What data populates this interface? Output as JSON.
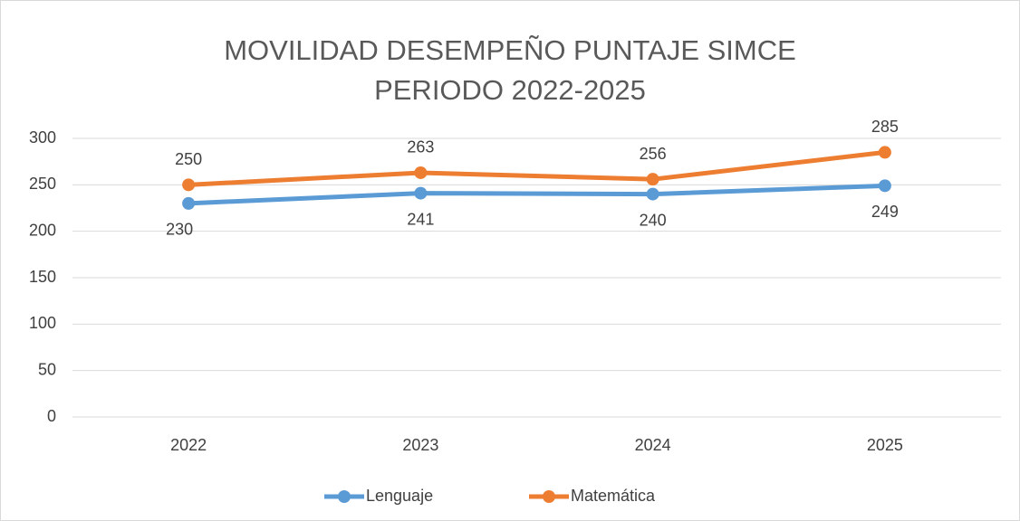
{
  "chart_data": {
    "type": "line",
    "title": "MOVILIDAD DESEMPEÑO PUNTAJE SIMCE PERIODO 2022-2025",
    "categories": [
      "2022",
      "2023",
      "2024",
      "2025"
    ],
    "series": [
      {
        "name": "Lenguaje",
        "color": "#5b9bd5",
        "values": [
          230,
          241,
          240,
          249
        ]
      },
      {
        "name": "Matemática",
        "color": "#ed7d31",
        "values": [
          250,
          263,
          256,
          285
        ]
      }
    ],
    "ylim": [
      0,
      300
    ],
    "yticks": [
      0,
      50,
      100,
      150,
      200,
      250,
      300
    ],
    "grid": true,
    "legend": "bottom"
  }
}
